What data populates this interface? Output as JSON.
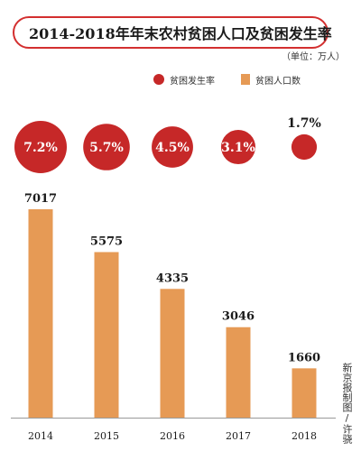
{
  "title": "2014-2018年年末农村贫困人口及贫困发生率",
  "unit": "（单位：万人）",
  "legend": {
    "rate_label": "贫困发生率",
    "population_label": "贫困人口数"
  },
  "credit": "新京报制图/许骁",
  "colors": {
    "bar": "#e69a55",
    "circle": "#c62828",
    "title_border": "#d32f2f"
  },
  "chart_data": {
    "type": "bar",
    "categories": [
      "2014",
      "2015",
      "2016",
      "2017",
      "2018"
    ],
    "series": [
      {
        "name": "贫困人口数",
        "values": [
          7017,
          5575,
          4335,
          3046,
          1660
        ],
        "labels": [
          "7017",
          "5575",
          "4335",
          "3046",
          "1660"
        ]
      },
      {
        "name": "贫困发生率",
        "values": [
          7.2,
          5.7,
          4.5,
          3.1,
          1.7
        ],
        "labels": [
          "7.2%",
          "5.7%",
          "4.5%",
          "3.1%",
          "1.7%"
        ]
      }
    ],
    "ylim": [
      0,
      7017
    ]
  }
}
